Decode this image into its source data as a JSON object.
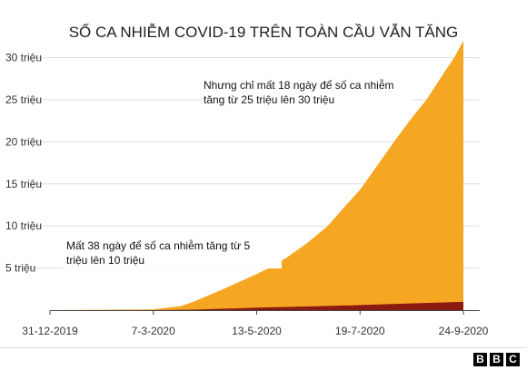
{
  "chart_data": {
    "type": "area",
    "title": "SỐ CA NHIỄM COVID-19 TRÊN TOÀN CẦU VẪN TĂNG",
    "xlabel": "",
    "ylabel": "",
    "x_range": [
      "2019-12-31",
      "2020-09-24"
    ],
    "ylim": [
      0,
      32
    ],
    "y_ticks": [
      {
        "value": 5,
        "label": "5 triệu"
      },
      {
        "value": 10,
        "label": "10 triệu"
      },
      {
        "value": 15,
        "label": "15 triệu"
      },
      {
        "value": 20,
        "label": "20 triệu"
      },
      {
        "value": 25,
        "label": "25 triệu"
      },
      {
        "value": 30,
        "label": "30 triệu"
      }
    ],
    "x_ticks": [
      {
        "date": "2019-12-31",
        "label": "31-12-2019"
      },
      {
        "date": "2020-03-07",
        "label": "7-3-2020"
      },
      {
        "date": "2020-05-13",
        "label": "13-5-2020"
      },
      {
        "date": "2020-07-19",
        "label": "19-7-2020"
      },
      {
        "date": "2020-09-24",
        "label": "24-9-2020"
      }
    ],
    "grid": true,
    "series": [
      {
        "color": "#f5a623",
        "points": [
          {
            "date": "2019-12-31",
            "value": 0
          },
          {
            "date": "2020-02-15",
            "value": 0.07
          },
          {
            "date": "2020-03-07",
            "value": 0.1
          },
          {
            "date": "2020-03-25",
            "value": 0.5
          },
          {
            "date": "2020-04-02",
            "value": 1.0
          },
          {
            "date": "2020-04-20",
            "value": 2.4
          },
          {
            "date": "2020-05-01",
            "value": 3.3
          },
          {
            "date": "2020-05-13",
            "value": 4.3
          },
          {
            "date": "2020-05-21",
            "value": 5.0
          },
          {
            "date": "2020-06-01",
            "value": 6.2
          },
          {
            "date": "2020-06-15",
            "value": 8.0
          },
          {
            "date": "2020-06-28",
            "value": 10.0
          },
          {
            "date": "2020-07-10",
            "value": 12.5
          },
          {
            "date": "2020-07-19",
            "value": 14.3
          },
          {
            "date": "2020-07-31",
            "value": 17.4
          },
          {
            "date": "2020-08-10",
            "value": 20.0
          },
          {
            "date": "2020-08-20",
            "value": 22.5
          },
          {
            "date": "2020-08-31",
            "value": 25.0
          },
          {
            "date": "2020-09-10",
            "value": 27.8
          },
          {
            "date": "2020-09-18",
            "value": 30.0
          },
          {
            "date": "2020-09-24",
            "value": 32.0
          }
        ]
      },
      {
        "color": "#8b1a10",
        "points": [
          {
            "date": "2019-12-31",
            "value": 0
          },
          {
            "date": "2020-03-07",
            "value": 0.004
          },
          {
            "date": "2020-04-02",
            "value": 0.05
          },
          {
            "date": "2020-05-13",
            "value": 0.29
          },
          {
            "date": "2020-06-28",
            "value": 0.5
          },
          {
            "date": "2020-07-19",
            "value": 0.6
          },
          {
            "date": "2020-08-20",
            "value": 0.8
          },
          {
            "date": "2020-09-24",
            "value": 0.98
          }
        ]
      }
    ],
    "annotations": [
      {
        "lines": [
          "Nhưng chỉ mất 18 ngày để số ca nhiễm",
          "tăng từ 25 triệu lên 30 triệu"
        ]
      },
      {
        "lines": [
          "Mất 38 ngày để số ca nhiễm tăng từ 5",
          "triệu lên 10 triệu"
        ]
      }
    ]
  },
  "branding": {
    "logo_letters": [
      "B",
      "B",
      "C"
    ]
  }
}
